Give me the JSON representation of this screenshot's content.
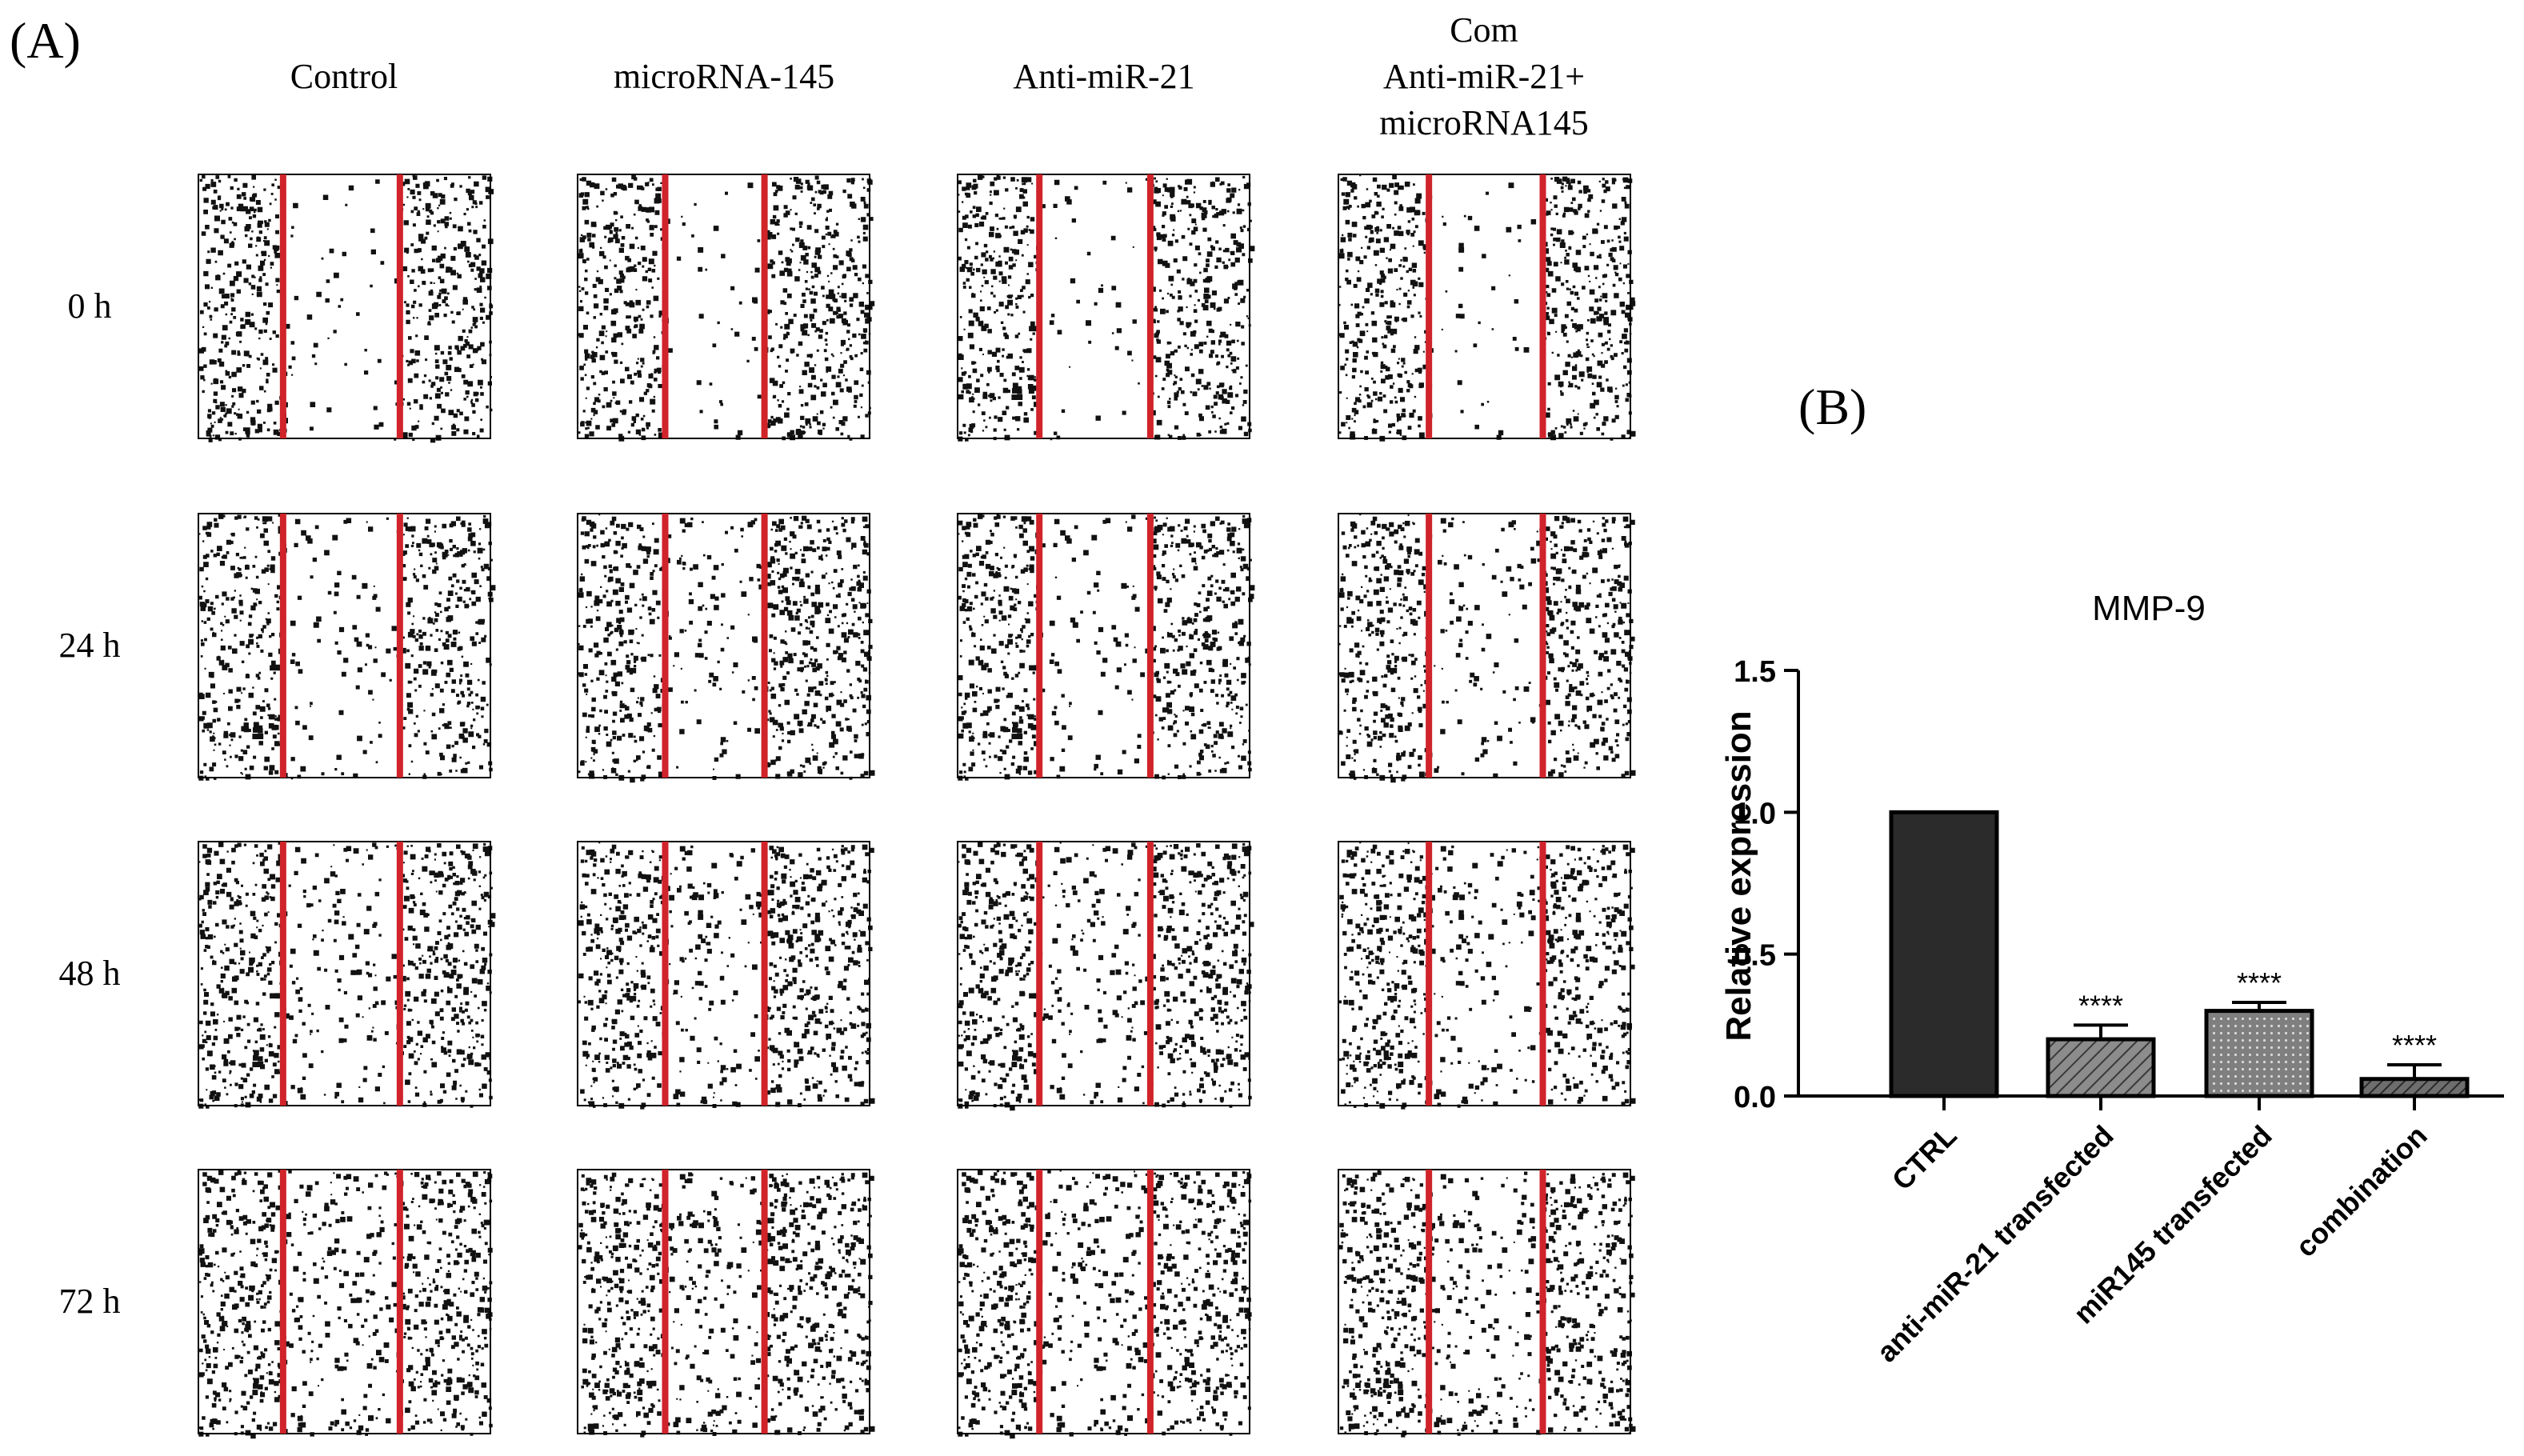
{
  "panel_a": {
    "label": "(A)",
    "columns": [
      {
        "lines": [
          "Control"
        ]
      },
      {
        "lines": [
          "microRNA-145"
        ]
      },
      {
        "lines": [
          "Anti-miR-21"
        ]
      },
      {
        "lines": [
          "Com",
          "Anti-miR-21+",
          "microRNA145"
        ]
      }
    ],
    "rows": [
      "0 h",
      "24 h",
      "48 h",
      "72 h"
    ],
    "colors": {
      "scratch_line": "#d0232a",
      "cells": "#111111"
    }
  },
  "panel_b": {
    "label": "(B)"
  },
  "chart_data": {
    "type": "bar",
    "title": "MMP-9",
    "xlabel": "",
    "ylabel": "Relative expression",
    "categories": [
      "CTRL",
      "anti-miR-21 transfected",
      "miR145 transfected",
      "combination"
    ],
    "values": [
      1.0,
      0.2,
      0.3,
      0.06
    ],
    "errors": [
      0,
      0.05,
      0.03,
      0.05
    ],
    "significance": [
      "",
      "****",
      "****",
      "****"
    ],
    "ylim": [
      0,
      1.5
    ],
    "yticks": [
      0.0,
      0.5,
      1.0,
      1.5
    ],
    "yticklabels": [
      "0.0",
      "0.5",
      "1.0",
      "1.5"
    ],
    "bar_fills": [
      "solid",
      "diagonal-hatch",
      "dotted",
      "dark-diagonal-hatch"
    ],
    "colors": {
      "ctrl": "#2b2b2b",
      "hatch_bg": "#8c8c8c",
      "dot_bg": "#7f7f7f",
      "combo_bg": "#6e6e6e",
      "axis": "#000000"
    },
    "grid": false,
    "legend": "none"
  }
}
